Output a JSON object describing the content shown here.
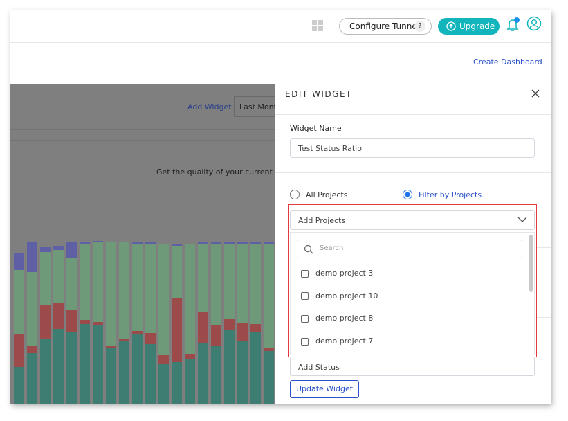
{
  "header": {
    "configure_tunnel": "Configure Tunnel",
    "help": "?",
    "upgrade": "Upgrade"
  },
  "toolbar": {
    "create_dashboard": "Create Dashboard"
  },
  "dashboard": {
    "add_widget": "Add Widget",
    "date_range": "Last Month",
    "description": "Get the quality of your current test",
    "chart": {
      "type": "bar",
      "stacked": true,
      "ylim": [
        0,
        233
      ],
      "series": [
        {
          "color": "#3e7d72",
          "values": [
            53,
            73,
            93,
            108,
            103,
            115,
            113,
            81,
            90,
            100,
            86,
            58,
            60,
            65,
            88,
            83,
            107,
            90,
            103,
            76
          ]
        },
        {
          "color": "#9c4a4a",
          "values": [
            48,
            10,
            50,
            38,
            32,
            6,
            5,
            2,
            3,
            5,
            16,
            12,
            93,
            7,
            44,
            30,
            16,
            27,
            12,
            4
          ]
        },
        {
          "color": "#6e9a79",
          "values": [
            92,
            107,
            76,
            76,
            76,
            110,
            115,
            150,
            140,
            126,
            129,
            161,
            75,
            159,
            99,
            118,
            108,
            114,
            116,
            151
          ]
        },
        {
          "color": "#5f5fa6",
          "values": [
            25,
            43,
            8,
            6,
            22,
            2,
            2,
            0,
            0,
            2,
            2,
            0,
            3,
            0,
            2,
            2,
            2,
            2,
            2,
            2
          ]
        }
      ]
    }
  },
  "edit_panel": {
    "title": "EDIT WIDGET",
    "widget_name_label": "Widget Name",
    "widget_name_value": "Test Status Ratio",
    "scope_options": [
      "All Projects",
      "Filter by Projects"
    ],
    "selected_scope": 1,
    "projects_dropdown": {
      "placeholder": "Add Projects",
      "search_placeholder": "Search",
      "items": [
        "demo project 3",
        "demo project 10",
        "demo project 8",
        "demo project 7"
      ]
    },
    "status_dropdown": "Add Status",
    "update_button": "Update Widget"
  }
}
